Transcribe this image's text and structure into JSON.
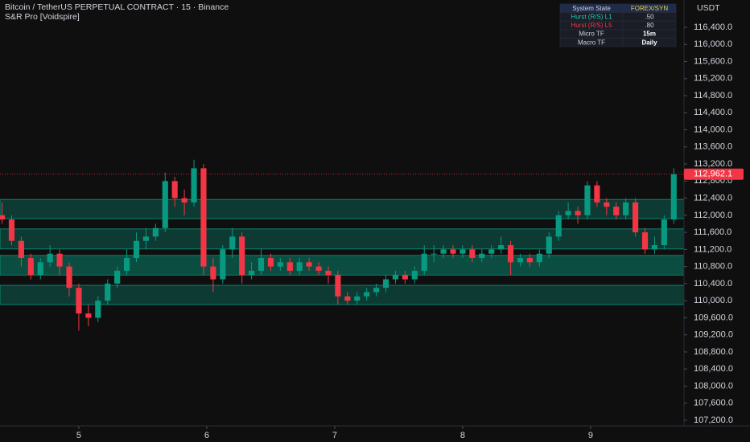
{
  "chart_data": {
    "type": "candlestick",
    "title": "Bitcoin / TetherUS PERPETUAL CONTRACT · 15 · Binance",
    "subtitle": "S&R Pro [Voidspire]",
    "currency": "USDT",
    "up_color": "#089981",
    "down_color": "#f23645",
    "zone_color": "#089981",
    "grid": false,
    "xlim": [
      4.384,
      9.73
    ],
    "xticks": [
      5,
      6,
      7,
      8,
      9
    ],
    "ylim": [
      107105,
      117040
    ],
    "yticks": [
      {
        "value": 107200,
        "label": "107,200.0"
      },
      {
        "value": 107600,
        "label": "107,600.0"
      },
      {
        "value": 108000,
        "label": "108,000.0"
      },
      {
        "value": 108400,
        "label": "108,400.0"
      },
      {
        "value": 108800,
        "label": "108,800.0"
      },
      {
        "value": 109200,
        "label": "109,200.0"
      },
      {
        "value": 109600,
        "label": "109,600.0"
      },
      {
        "value": 110000,
        "label": "110,000.0"
      },
      {
        "value": 110400,
        "label": "110,400.0"
      },
      {
        "value": 110800,
        "label": "110,800.0"
      },
      {
        "value": 111200,
        "label": "111,200.0"
      },
      {
        "value": 111600,
        "label": "111,600.0"
      },
      {
        "value": 112000,
        "label": "112,000.0"
      },
      {
        "value": 112400,
        "label": "112,400.0"
      },
      {
        "value": 112800,
        "label": "112,800.0"
      },
      {
        "value": 113200,
        "label": "113,200.0"
      },
      {
        "value": 113600,
        "label": "113,600.0"
      },
      {
        "value": 114000,
        "label": "114,000.0"
      },
      {
        "value": 114400,
        "label": "114,400.0"
      },
      {
        "value": 114800,
        "label": "114,800.0"
      },
      {
        "value": 115200,
        "label": "115,200.0"
      },
      {
        "value": 115600,
        "label": "115,600.0"
      },
      {
        "value": 116000,
        "label": "116,000.0"
      },
      {
        "value": 116400,
        "label": "116,400.0"
      }
    ],
    "price_line": {
      "value": 112962.1,
      "label": "112,962.1"
    },
    "zones": [
      [
        111920,
        112370
      ],
      [
        111210,
        111680
      ],
      [
        110600,
        111060
      ],
      [
        109910,
        110360
      ]
    ],
    "x": [
      4.4,
      4.475,
      4.55,
      4.625,
      4.7,
      4.775,
      4.85,
      4.925,
      5.0,
      5.075,
      5.15,
      5.225,
      5.3,
      5.375,
      5.45,
      5.525,
      5.6,
      5.675,
      5.75,
      5.825,
      5.9,
      5.975,
      6.05,
      6.125,
      6.2,
      6.275,
      6.35,
      6.425,
      6.5,
      6.575,
      6.65,
      6.725,
      6.8,
      6.875,
      6.95,
      7.025,
      7.1,
      7.175,
      7.25,
      7.325,
      7.4,
      7.475,
      7.55,
      7.625,
      7.7,
      7.775,
      7.85,
      7.925,
      8.0,
      8.075,
      8.15,
      8.225,
      8.3,
      8.375,
      8.45,
      8.525,
      8.6,
      8.675,
      8.75,
      8.825,
      8.9,
      8.975,
      9.05,
      9.125,
      9.2,
      9.275,
      9.35,
      9.425,
      9.5,
      9.575,
      9.65
    ],
    "open": [
      112000,
      111900,
      111400,
      111000,
      110600,
      110900,
      111100,
      110800,
      110300,
      109700,
      109600,
      110000,
      110400,
      110700,
      111000,
      111400,
      111500,
      111700,
      112800,
      112400,
      112300,
      113100,
      110800,
      110500,
      111200,
      111500,
      110600,
      110700,
      111000,
      110800,
      110900,
      110700,
      110900,
      110800,
      110700,
      110600,
      110100,
      110000,
      110100,
      110200,
      110300,
      110500,
      110600,
      110500,
      110700,
      111100,
      111100,
      111200,
      111100,
      111200,
      111000,
      111100,
      111200,
      111300,
      110900,
      111000,
      110900,
      111100,
      111500,
      112000,
      112100,
      112000,
      112700,
      112300,
      112200,
      112000,
      112300,
      111600,
      111200,
      111300,
      111900
    ],
    "high": [
      112300,
      112000,
      111500,
      111100,
      111000,
      111300,
      111200,
      110900,
      110400,
      109900,
      110100,
      110500,
      110800,
      111200,
      111600,
      111700,
      111800,
      113000,
      112900,
      112600,
      113300,
      113200,
      111000,
      111300,
      111700,
      111600,
      110900,
      111200,
      111100,
      111000,
      111000,
      111000,
      111000,
      110900,
      110800,
      110700,
      110200,
      110200,
      110300,
      110400,
      110600,
      110700,
      110700,
      110800,
      111300,
      111300,
      111300,
      111300,
      111300,
      111300,
      111200,
      111300,
      111500,
      111400,
      111100,
      111100,
      111200,
      111600,
      112100,
      112300,
      112200,
      112800,
      112800,
      112400,
      112300,
      112400,
      112400,
      111700,
      111500,
      112000,
      113100
    ],
    "low": [
      111800,
      111300,
      110800,
      110500,
      110500,
      110800,
      110600,
      110100,
      109300,
      109400,
      109500,
      109900,
      110300,
      110600,
      110900,
      111200,
      111400,
      111600,
      112200,
      112000,
      112200,
      110600,
      110200,
      110400,
      111000,
      110400,
      110500,
      110600,
      110700,
      110700,
      110600,
      110600,
      110700,
      110600,
      110400,
      109900,
      109900,
      109900,
      110000,
      110100,
      110200,
      110400,
      110400,
      110400,
      110600,
      110900,
      111000,
      111000,
      111000,
      110900,
      110900,
      111000,
      111100,
      110600,
      110800,
      110800,
      110800,
      111000,
      111400,
      111900,
      111800,
      111900,
      112200,
      112000,
      111900,
      111900,
      111500,
      111100,
      111100,
      111200,
      111800
    ],
    "close": [
      111900,
      111400,
      111000,
      110600,
      110900,
      111100,
      110800,
      110300,
      109700,
      109600,
      110000,
      110400,
      110700,
      111000,
      111400,
      111500,
      111700,
      112800,
      112400,
      112300,
      113100,
      110800,
      110500,
      111200,
      111500,
      110600,
      110700,
      111000,
      110800,
      110900,
      110700,
      110900,
      110800,
      110700,
      110600,
      110100,
      110000,
      110100,
      110200,
      110300,
      110500,
      110600,
      110500,
      110700,
      111100,
      111100,
      111200,
      111100,
      111200,
      111000,
      111100,
      111200,
      111300,
      110900,
      111000,
      110900,
      111100,
      111500,
      112000,
      112100,
      112000,
      112700,
      112300,
      112200,
      112000,
      112300,
      111600,
      111200,
      111300,
      111900,
      112962.1
    ]
  },
  "table": {
    "rows": [
      [
        "System State",
        "FOREX/SYN"
      ],
      [
        "Hurst (R/S) L1",
        ".50"
      ],
      [
        "Hurst (R/S) L5",
        ".80"
      ],
      [
        "Micro TF",
        "15m"
      ],
      [
        "Macro TF",
        "Daily"
      ]
    ]
  }
}
